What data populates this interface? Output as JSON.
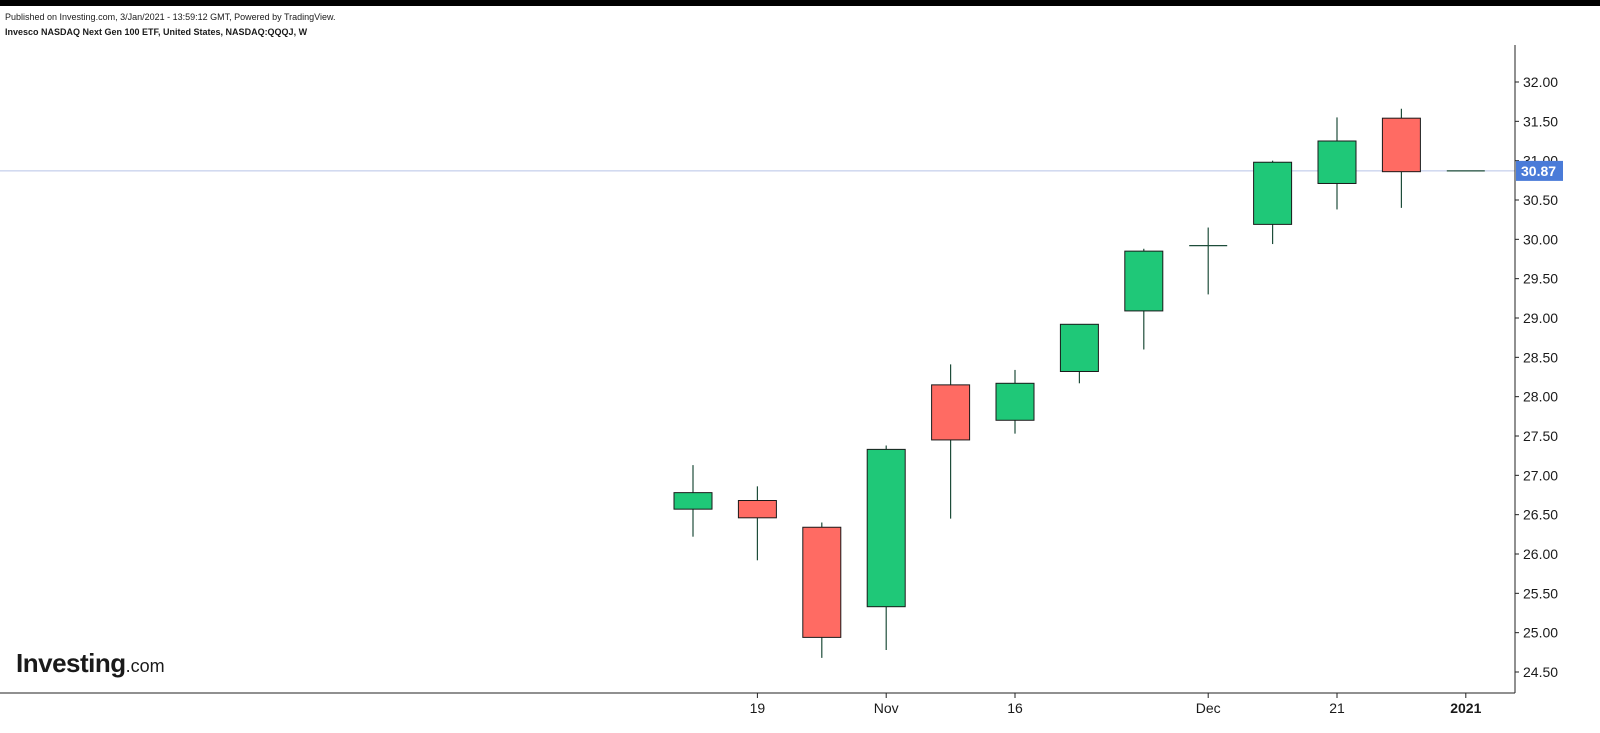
{
  "header": {
    "published": "Published on Investing.com, 3/Jan/2021 - 13:59:12 GMT, Powered by TradingView.",
    "title": "Invesco NASDAQ Next Gen 100 ETF, United States, NASDAQ:QQQJ, W"
  },
  "logo": {
    "main": "Investing",
    "suffix": ".com"
  },
  "colors": {
    "up": "#1fc878",
    "down": "#ff6b63",
    "wick": "#1e4d3a",
    "outline": "#1a1a1a",
    "price_line": "#b7c3e8",
    "price_label_bg": "#4a7bd8"
  },
  "chart_data": {
    "type": "candlestick",
    "title": "Invesco NASDAQ Next Gen 100 ETF, United States, NASDAQ:QQQJ, W",
    "ylim": [
      24.3,
      32.5
    ],
    "y_ticks": [
      24.5,
      25.0,
      25.5,
      26.0,
      26.5,
      27.0,
      27.5,
      28.0,
      28.5,
      29.0,
      29.5,
      30.0,
      30.5,
      31.0,
      31.5,
      32.0
    ],
    "y_tick_labels": [
      "24.50",
      "25.00",
      "25.50",
      "26.00",
      "26.50",
      "27.00",
      "27.50",
      "28.00",
      "28.50",
      "29.00",
      "29.50",
      "30.00",
      "30.50",
      "31.00",
      "31.50",
      "32.00"
    ],
    "x_tick_labels": [
      {
        "label": "19",
        "index": 1,
        "bold": false
      },
      {
        "label": "Nov",
        "index": 3,
        "bold": false
      },
      {
        "label": "16",
        "index": 5,
        "bold": false
      },
      {
        "label": "Dec",
        "index": 8,
        "bold": false
      },
      {
        "label": "21",
        "index": 10,
        "bold": false
      },
      {
        "label": "2021",
        "index": 12,
        "bold": true
      }
    ],
    "candles": [
      {
        "open": 26.57,
        "high": 27.13,
        "low": 26.22,
        "close": 26.78
      },
      {
        "open": 26.68,
        "high": 26.86,
        "low": 25.92,
        "close": 26.46
      },
      {
        "open": 26.34,
        "high": 26.4,
        "low": 24.68,
        "close": 24.94
      },
      {
        "open": 25.33,
        "high": 27.38,
        "low": 24.78,
        "close": 27.33
      },
      {
        "open": 28.15,
        "high": 28.41,
        "low": 26.45,
        "close": 27.45
      },
      {
        "open": 27.7,
        "high": 28.34,
        "low": 27.53,
        "close": 28.17
      },
      {
        "open": 28.32,
        "high": 28.92,
        "low": 28.17,
        "close": 28.92
      },
      {
        "open": 29.09,
        "high": 29.88,
        "low": 28.6,
        "close": 29.85
      },
      {
        "open": 29.92,
        "high": 30.15,
        "low": 29.3,
        "close": 29.92
      },
      {
        "open": 30.19,
        "high": 31.0,
        "low": 29.94,
        "close": 30.98
      },
      {
        "open": 30.71,
        "high": 31.55,
        "low": 30.38,
        "close": 31.25
      },
      {
        "open": 31.54,
        "high": 31.66,
        "low": 30.4,
        "close": 30.86
      },
      {
        "open": 30.87,
        "high": 30.87,
        "low": 30.87,
        "close": 30.87
      }
    ],
    "last_price": 30.87,
    "last_price_label": "30.87",
    "grid": false
  }
}
